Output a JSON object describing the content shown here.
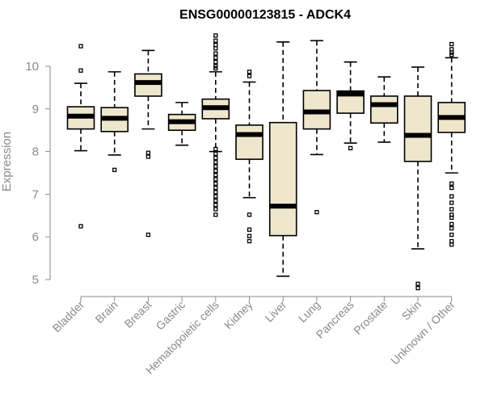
{
  "chart_data": {
    "type": "boxplot",
    "title": "ENSG00000123815 - ADCK4",
    "ylabel": "Expression",
    "xlabel": "",
    "ylim": [
      4.7,
      10.8
    ],
    "yticks": [
      5,
      6,
      7,
      8,
      9,
      10
    ],
    "colors": {
      "box_fill": "#efe7cd",
      "stroke": "#000000",
      "axis": "#8a8a8a"
    },
    "categories": [
      "Bladder",
      "Brain",
      "Breast",
      "Gastric",
      "Hematopoietic cells",
      "Kidney",
      "Liver",
      "Lung",
      "Pancreas",
      "Prostate",
      "Skin",
      "Unknown / Other"
    ],
    "series": [
      {
        "name": "Bladder",
        "whisker_low": 8.02,
        "q1": 8.53,
        "median": 8.83,
        "q3": 9.05,
        "whisker_high": 9.6,
        "outliers": [
          10.47,
          9.9,
          6.25
        ]
      },
      {
        "name": "Brain",
        "whisker_low": 7.92,
        "q1": 8.47,
        "median": 8.78,
        "q3": 9.03,
        "whisker_high": 9.87,
        "outliers": [
          7.57
        ]
      },
      {
        "name": "Breast",
        "whisker_low": 8.53,
        "q1": 9.3,
        "median": 9.62,
        "q3": 9.82,
        "whisker_high": 10.37,
        "outliers": [
          7.97,
          7.88,
          6.05
        ]
      },
      {
        "name": "Gastric",
        "whisker_low": 8.15,
        "q1": 8.5,
        "median": 8.7,
        "q3": 8.87,
        "whisker_high": 9.15,
        "outliers": []
      },
      {
        "name": "Hematopoietic cells",
        "whisker_low": 8.0,
        "q1": 8.77,
        "median": 9.03,
        "q3": 9.23,
        "whisker_high": 9.87,
        "outliers": [
          10.72,
          10.6,
          10.5,
          10.42,
          10.3,
          10.2,
          10.1,
          10.0,
          9.95,
          8.06,
          7.95,
          7.85,
          7.75,
          7.65,
          7.55,
          7.45,
          7.35,
          7.25,
          7.15,
          7.05,
          6.95,
          6.85,
          6.75,
          6.65,
          6.52
        ]
      },
      {
        "name": "Kidney",
        "whisker_low": 6.92,
        "q1": 7.82,
        "median": 8.4,
        "q3": 8.62,
        "whisker_high": 9.63,
        "outliers": [
          9.87,
          9.77,
          6.52,
          6.17,
          6.02,
          5.9
        ]
      },
      {
        "name": "Liver",
        "whisker_low": 5.08,
        "q1": 6.03,
        "median": 6.72,
        "q3": 8.68,
        "whisker_high": 10.57,
        "outliers": []
      },
      {
        "name": "Lung",
        "whisker_low": 7.93,
        "q1": 8.53,
        "median": 8.93,
        "q3": 9.43,
        "whisker_high": 10.6,
        "outliers": [
          6.58
        ]
      },
      {
        "name": "Pancreas",
        "whisker_low": 8.2,
        "q1": 8.9,
        "median": 9.35,
        "q3": 9.42,
        "whisker_high": 10.1,
        "outliers": [
          8.08
        ]
      },
      {
        "name": "Prostate",
        "whisker_low": 8.22,
        "q1": 8.67,
        "median": 9.1,
        "q3": 9.3,
        "whisker_high": 9.75,
        "outliers": []
      },
      {
        "name": "Skin",
        "whisker_low": 5.72,
        "q1": 7.77,
        "median": 8.38,
        "q3": 9.3,
        "whisker_high": 9.98,
        "outliers": [
          4.9,
          4.8
        ]
      },
      {
        "name": "Unknown / Other",
        "whisker_low": 7.5,
        "q1": 8.45,
        "median": 8.8,
        "q3": 9.15,
        "whisker_high": 10.2,
        "outliers": [
          10.52,
          10.4,
          10.32,
          10.27,
          7.25,
          7.15,
          6.95,
          6.8,
          6.65,
          6.52,
          6.45,
          6.3,
          6.2,
          6.05,
          5.9,
          5.82
        ]
      }
    ]
  }
}
